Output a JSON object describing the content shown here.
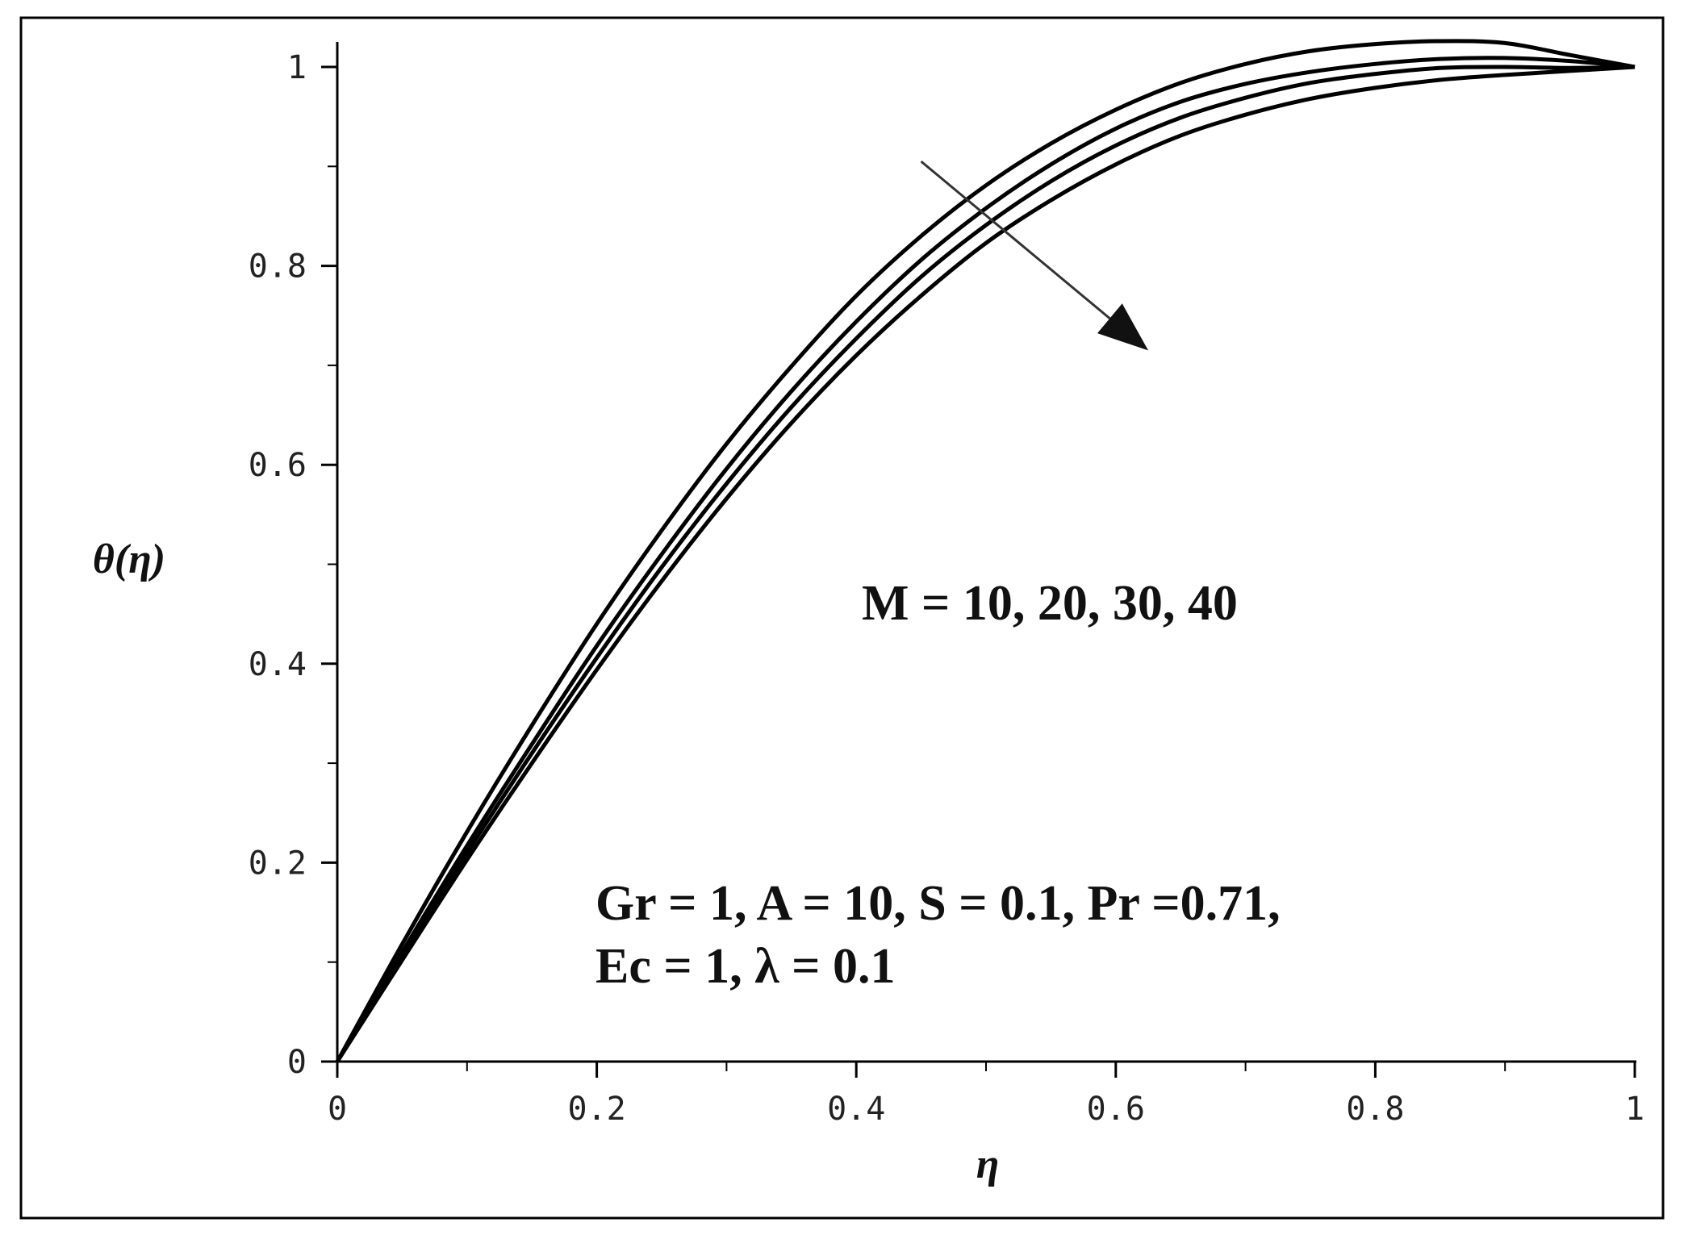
{
  "chart_data": {
    "type": "line",
    "xlabel": "η",
    "ylabel": "θ(η)",
    "xlim": [
      0,
      1
    ],
    "ylim": [
      0,
      1
    ],
    "x_ticks": [
      0,
      0.2,
      0.4,
      0.6,
      0.8,
      1
    ],
    "x_tick_labels": [
      "0",
      "0.2",
      "0.4",
      "0.6",
      "0.8",
      "1"
    ],
    "y_ticks": [
      0,
      0.2,
      0.4,
      0.6,
      0.8,
      1
    ],
    "y_tick_labels": [
      "0",
      "0.2",
      "0.4",
      "0.6",
      "0.8",
      "1"
    ],
    "x_minor_step": 0.1,
    "y_minor_step": 0.1,
    "grid": false,
    "legend": "none",
    "x": [
      0,
      0.05,
      0.1,
      0.15,
      0.2,
      0.25,
      0.3,
      0.35,
      0.4,
      0.45,
      0.5,
      0.55,
      0.6,
      0.65,
      0.7,
      0.75,
      0.8,
      0.85,
      0.9,
      0.95,
      1
    ],
    "series": [
      {
        "values": [
          0,
          0.118,
          0.231,
          0.338,
          0.44,
          0.534,
          0.621,
          0.699,
          0.77,
          0.83,
          0.881,
          0.923,
          0.957,
          0.984,
          1.003,
          1.016,
          1.023,
          1.026,
          1.024,
          1.012,
          1.0
        ]
      },
      {
        "values": [
          0,
          0.11,
          0.217,
          0.319,
          0.418,
          0.51,
          0.596,
          0.674,
          0.744,
          0.806,
          0.858,
          0.902,
          0.938,
          0.965,
          0.983,
          0.995,
          1.003,
          1.008,
          1.009,
          1.006,
          1.0
        ]
      },
      {
        "values": [
          0,
          0.106,
          0.21,
          0.31,
          0.406,
          0.497,
          0.581,
          0.658,
          0.727,
          0.789,
          0.841,
          0.885,
          0.921,
          0.949,
          0.969,
          0.984,
          0.993,
          0.999,
          1.0,
          0.999,
          1.0
        ]
      },
      {
        "values": [
          0,
          0.102,
          0.203,
          0.3,
          0.394,
          0.483,
          0.566,
          0.642,
          0.71,
          0.77,
          0.823,
          0.866,
          0.902,
          0.931,
          0.952,
          0.968,
          0.979,
          0.987,
          0.992,
          0.996,
          1.0
        ]
      }
    ],
    "annotations": {
      "m_label": "M = 10, 20, 30, 40",
      "params_line1": "Gr = 1, A = 10, S = 0.1, Pr =0.71,",
      "params_line2": "Ec = 1, λ = 0.1"
    },
    "arrow": {
      "from": [
        0.45,
        0.905
      ],
      "to": [
        0.625,
        0.715
      ]
    },
    "colors": {
      "lines": "#000000",
      "arrow": "#333333",
      "frame": "#000000"
    }
  }
}
